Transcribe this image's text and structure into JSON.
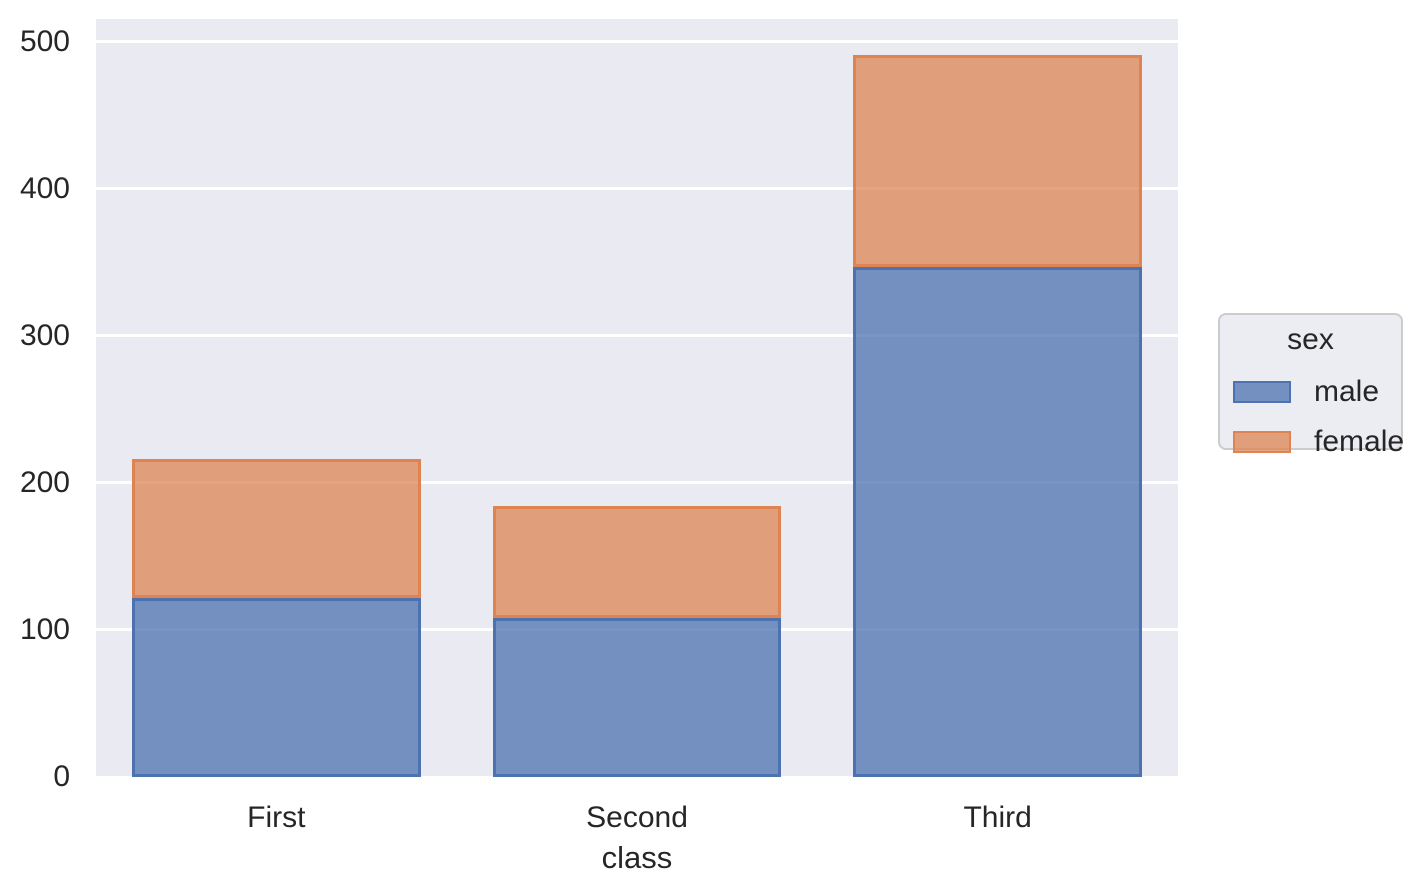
{
  "chart_data": {
    "type": "bar",
    "stacked": true,
    "title": "",
    "xlabel": "class",
    "ylabel": "",
    "categories": [
      "First",
      "Second",
      "Third"
    ],
    "series": [
      {
        "name": "male",
        "values": [
          122,
          108,
          347
        ],
        "fill": "rgba(76,114,176,0.75)",
        "edge": "#4C72B0"
      },
      {
        "name": "female",
        "values": [
          94,
          76,
          144
        ],
        "fill": "rgba(221,132,82,0.75)",
        "edge": "#DD8452"
      }
    ],
    "stack_totals": [
      216,
      184,
      491
    ],
    "ylim": [
      0,
      515.55
    ],
    "yticks": [
      0,
      100,
      200,
      300,
      400,
      500
    ],
    "grid": "horizontal white gridlines on",
    "legend": {
      "title": "sex",
      "position": "right-of-plot",
      "entries": [
        "male",
        "female"
      ]
    },
    "colors": {
      "figure_bg": "#FFFFFF",
      "plot_bg": "#EAEAF2",
      "grid": "#FFFFFF",
      "text": "#262626",
      "male_fill": "#7390C0",
      "male_edge": "#4C72B0",
      "female_fill": "#E09D7A",
      "female_edge": "#DD8452",
      "legend_bg": "#ECECF3",
      "legend_border": "#CCCCCC"
    }
  }
}
